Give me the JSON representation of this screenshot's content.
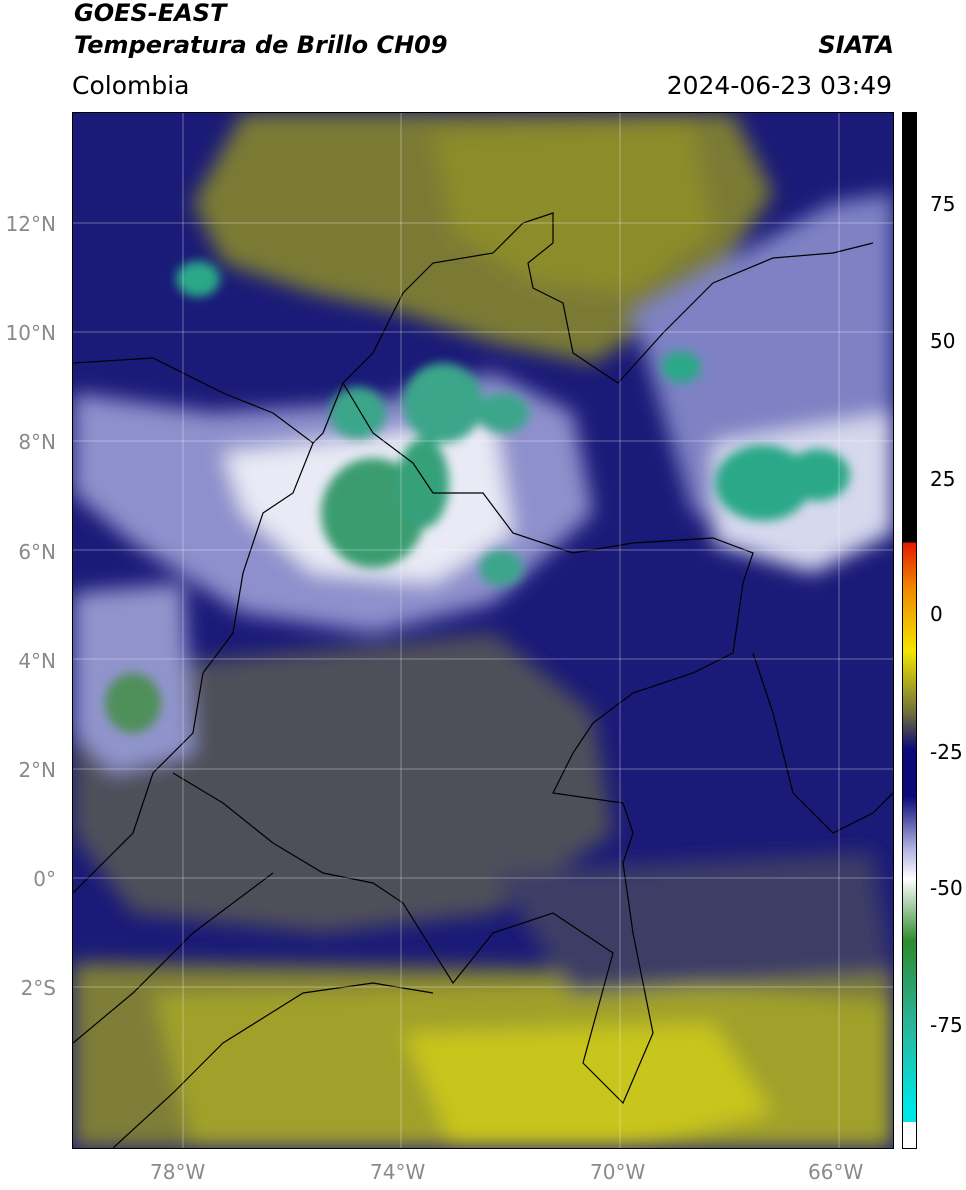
{
  "header": {
    "satellite": "GOES-EAST",
    "product": "Temperatura de Brillo CH09",
    "region": "Colombia",
    "brand": "SIATA",
    "timestamp": "2024-06-23 03:49"
  },
  "map": {
    "lat_ticks": [
      "12°N",
      "10°N",
      "8°N",
      "6°N",
      "4°N",
      "2°N",
      "0°",
      "2°S"
    ],
    "lon_ticks": [
      "78°W",
      "74°W",
      "70°W",
      "66°W"
    ],
    "lon_range": [
      -80,
      -65
    ],
    "lat_range": [
      -5,
      14
    ]
  },
  "colorbar": {
    "ticks": [
      "75",
      "50",
      "25",
      "0",
      "-25",
      "-50",
      "-75"
    ],
    "range": [
      -95,
      90
    ],
    "colors": {
      "black": "#000000",
      "red": "#e51a00",
      "orange": "#f08a00",
      "yellow": "#f2e600",
      "olive": "#6e6e3c",
      "navy": "#0a0a78",
      "lavender": "#aeb0e0",
      "white": "#ffffff",
      "green": "#2e8b2e",
      "teal": "#2ab59a",
      "cyan": "#00e6e6"
    }
  }
}
